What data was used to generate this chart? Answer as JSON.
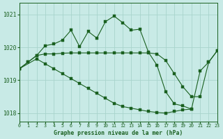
{
  "title": "Graphe pression niveau de la mer (hPa)",
  "bg_color": "#c8eae6",
  "grid_color": "#a8d4cc",
  "line_color": "#1a6020",
  "xlim": [
    0,
    23
  ],
  "ylim": [
    1017.75,
    1021.35
  ],
  "yticks": [
    1018,
    1019,
    1020,
    1021
  ],
  "xticks": [
    0,
    1,
    2,
    3,
    4,
    5,
    6,
    7,
    8,
    9,
    10,
    11,
    12,
    13,
    14,
    15,
    16,
    17,
    18,
    19,
    20,
    21,
    22,
    23
  ],
  "line1_x": [
    0,
    1,
    2,
    3,
    4,
    5,
    6,
    7,
    8,
    9,
    10,
    11,
    12,
    13,
    14,
    15,
    16,
    17,
    18,
    19,
    20,
    21,
    22,
    23
  ],
  "line1_y": [
    1019.35,
    1019.55,
    1019.75,
    1019.8,
    1019.8,
    1019.82,
    1019.83,
    1019.83,
    1019.83,
    1019.83,
    1019.83,
    1019.83,
    1019.83,
    1019.83,
    1019.83,
    1019.83,
    1019.8,
    1019.6,
    1019.2,
    1018.8,
    1018.5,
    1018.5,
    1019.55,
    1019.9
  ],
  "line2_x": [
    0,
    1,
    2,
    3,
    4,
    5,
    6,
    7,
    8,
    9,
    10,
    11,
    12,
    13,
    14,
    15,
    16,
    17,
    18,
    19,
    20,
    21,
    22,
    23
  ],
  "line2_y": [
    1019.35,
    1019.55,
    1019.75,
    1020.05,
    1020.1,
    1020.22,
    1020.52,
    1020.02,
    1020.48,
    1020.28,
    1020.78,
    1020.95,
    1020.75,
    1020.52,
    1020.55,
    1019.85,
    1019.45,
    1018.65,
    1018.28,
    1018.22,
    1018.12,
    1019.28,
    1019.55,
    1019.9
  ],
  "line3_x": [
    0,
    2,
    3,
    4,
    5,
    6,
    7,
    8,
    9,
    10,
    11,
    12,
    13,
    14,
    15,
    16,
    17,
    18,
    19,
    20
  ],
  "line3_y": [
    1019.35,
    1019.65,
    1019.5,
    1019.35,
    1019.2,
    1019.05,
    1018.9,
    1018.75,
    1018.6,
    1018.45,
    1018.3,
    1018.2,
    1018.15,
    1018.1,
    1018.05,
    1018.02,
    1018.0,
    1018.05,
    1018.1,
    1018.12
  ]
}
